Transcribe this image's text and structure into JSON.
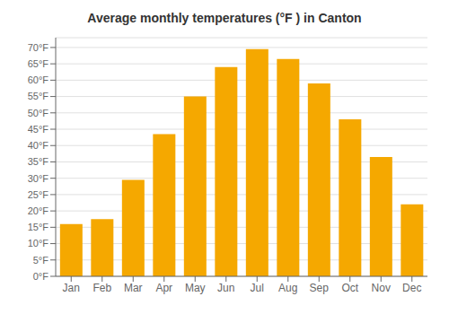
{
  "chart_data": {
    "type": "bar",
    "title": "Average monthly temperatures (°F ) in Canton",
    "categories": [
      "Jan",
      "Feb",
      "Mar",
      "Apr",
      "May",
      "Jun",
      "Jul",
      "Aug",
      "Sep",
      "Oct",
      "Nov",
      "Dec"
    ],
    "values": [
      16,
      17.5,
      29.5,
      43.5,
      55,
      64,
      69.5,
      66.5,
      59,
      48,
      36.5,
      22
    ],
    "color": "#F5A800",
    "ylim": [
      0,
      73
    ],
    "yticks": [
      {
        "value": 0,
        "label": "0°F"
      },
      {
        "value": 5,
        "label": "5°F"
      },
      {
        "value": 10,
        "label": "10°F"
      },
      {
        "value": 15,
        "label": "15°F"
      },
      {
        "value": 20,
        "label": "20°F"
      },
      {
        "value": 25,
        "label": "25°F"
      },
      {
        "value": 30,
        "label": "30°F"
      },
      {
        "value": 35,
        "label": "35°F"
      },
      {
        "value": 40,
        "label": "40°F"
      },
      {
        "value": 45,
        "label": "45°F"
      },
      {
        "value": 50,
        "label": "50°F"
      },
      {
        "value": 55,
        "label": "55°F"
      },
      {
        "value": 60,
        "label": "60°F"
      },
      {
        "value": 65,
        "label": "65°F"
      },
      {
        "value": 70,
        "label": "70°F"
      }
    ],
    "grid": true
  }
}
